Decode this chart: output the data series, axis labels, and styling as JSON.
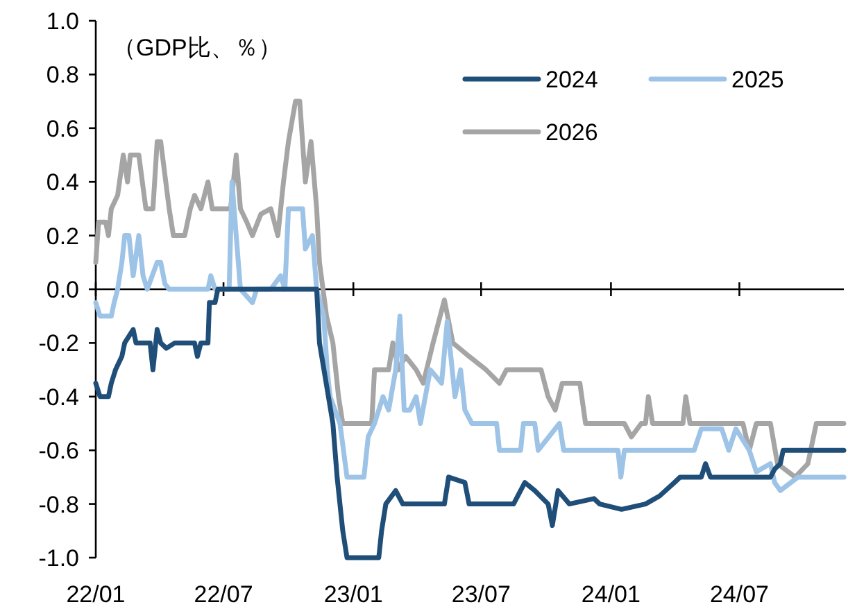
{
  "chart_data": {
    "type": "line",
    "ylabel": "（GDP比、％）",
    "legend": "top right",
    "xlim": [
      "2022-01-01",
      "2024-11-26"
    ],
    "ylim": [
      -1.0,
      1.0
    ],
    "xticks": [
      {
        "value": "2022-01-01",
        "label": "22/01"
      },
      {
        "value": "2022-07-01",
        "label": "22/07"
      },
      {
        "value": "2023-01-01",
        "label": "23/01"
      },
      {
        "value": "2023-07-01",
        "label": "23/07"
      },
      {
        "value": "2024-01-01",
        "label": "24/01"
      },
      {
        "value": "2024-07-01",
        "label": "24/07"
      }
    ],
    "yticks": [
      {
        "value": -1.0,
        "label": "-1.0"
      },
      {
        "value": -0.8,
        "label": "-0.8"
      },
      {
        "value": -0.6,
        "label": "-0.6"
      },
      {
        "value": -0.4,
        "label": "-0.4"
      },
      {
        "value": -0.2,
        "label": "-0.2"
      },
      {
        "value": 0,
        "label": "0.0"
      },
      {
        "value": 0.2,
        "label": "0.2"
      },
      {
        "value": 0.4,
        "label": "0.4"
      },
      {
        "value": 0.6,
        "label": "0.6"
      },
      {
        "value": 0.8,
        "label": "0.8"
      },
      {
        "value": 1.0,
        "label": "1.0"
      }
    ],
    "series": [
      {
        "name": "2024",
        "color": "#1f4e79",
        "x": [
          "2022-01-01",
          "2022-01-07",
          "2022-01-19",
          "2022-01-23",
          "2022-01-29",
          "2022-02-07",
          "2022-02-11",
          "2022-02-23",
          "2022-02-27",
          "2022-03-19",
          "2022-03-23",
          "2022-03-29",
          "2022-04-03",
          "2022-04-11",
          "2022-04-23",
          "2022-05-21",
          "2022-05-25",
          "2022-05-30",
          "2022-06-09",
          "2022-06-11",
          "2022-06-19",
          "2022-06-23",
          "2022-11-10",
          "2022-11-14",
          "2022-12-03",
          "2022-12-09",
          "2022-12-17",
          "2022-12-23",
          "2023-02-06",
          "2023-02-10",
          "2023-02-16",
          "2023-03-02",
          "2023-03-12",
          "2023-05-10",
          "2023-05-16",
          "2023-06-08",
          "2023-06-14",
          "2023-08-16",
          "2023-09-01",
          "2023-09-15",
          "2023-10-04",
          "2023-10-10",
          "2023-10-18",
          "2023-11-03",
          "2023-12-08",
          "2023-12-16",
          "2024-01-16",
          "2024-02-19",
          "2024-03-10",
          "2024-03-31",
          "2024-04-08",
          "2024-05-08",
          "2024-05-14",
          "2024-05-21",
          "2024-07-15",
          "2024-08-14",
          "2024-08-20",
          "2024-08-28",
          "2024-09-01",
          "2024-11-26"
        ],
        "values": [
          -0.35,
          -0.4,
          -0.4,
          -0.35,
          -0.3,
          -0.25,
          -0.2,
          -0.15,
          -0.2,
          -0.2,
          -0.3,
          -0.15,
          -0.2,
          -0.22,
          -0.2,
          -0.2,
          -0.25,
          -0.2,
          -0.2,
          -0.05,
          -0.05,
          0,
          0,
          -0.2,
          -0.5,
          -0.7,
          -0.9,
          -1.0,
          -1.0,
          -0.9,
          -0.8,
          -0.75,
          -0.8,
          -0.8,
          -0.7,
          -0.72,
          -0.8,
          -0.8,
          -0.72,
          -0.75,
          -0.8,
          -0.88,
          -0.75,
          -0.8,
          -0.78,
          -0.8,
          -0.82,
          -0.8,
          -0.77,
          -0.72,
          -0.7,
          -0.7,
          -0.65,
          -0.7,
          -0.7,
          -0.7,
          -0.67,
          -0.65,
          -0.6,
          -0.6
        ]
      },
      {
        "name": "2025",
        "color": "#9dc3e6",
        "x": [
          "2022-01-01",
          "2022-01-07",
          "2022-01-23",
          "2022-01-27",
          "2022-02-01",
          "2022-02-07",
          "2022-02-11",
          "2022-02-17",
          "2022-02-23",
          "2022-03-03",
          "2022-03-09",
          "2022-03-15",
          "2022-03-29",
          "2022-04-03",
          "2022-04-09",
          "2022-04-15",
          "2022-06-09",
          "2022-06-13",
          "2022-06-19",
          "2022-07-09",
          "2022-07-13",
          "2022-07-19",
          "2022-07-25",
          "2022-08-11",
          "2022-08-17",
          "2022-09-06",
          "2022-09-20",
          "2022-09-26",
          "2022-10-01",
          "2022-10-21",
          "2022-10-25",
          "2022-11-04",
          "2022-11-10",
          "2022-11-20",
          "2022-11-25",
          "2022-11-29",
          "2022-12-13",
          "2022-12-23",
          "2023-01-16",
          "2023-01-22",
          "2023-01-31",
          "2023-02-12",
          "2023-02-20",
          "2023-03-02",
          "2023-03-08",
          "2023-03-14",
          "2023-03-22",
          "2023-03-31",
          "2023-04-06",
          "2023-04-20",
          "2023-05-06",
          "2023-05-14",
          "2023-05-25",
          "2023-06-02",
          "2023-06-08",
          "2023-06-18",
          "2023-07-23",
          "2023-07-27",
          "2023-08-26",
          "2023-08-30",
          "2023-09-15",
          "2023-09-20",
          "2023-10-20",
          "2023-10-26",
          "2024-01-11",
          "2024-01-15",
          "2024-01-20",
          "2024-04-28",
          "2024-05-08",
          "2024-06-06",
          "2024-06-16",
          "2024-06-26",
          "2024-07-15",
          "2024-07-25",
          "2024-08-14",
          "2024-08-20",
          "2024-08-28",
          "2024-09-12",
          "2024-09-22",
          "2024-11-26"
        ],
        "values": [
          -0.05,
          -0.1,
          -0.1,
          -0.05,
          0,
          0.1,
          0.2,
          0.2,
          0.05,
          0.2,
          0.05,
          0,
          0.1,
          0.1,
          0.02,
          0,
          0,
          0.05,
          0,
          0,
          0.4,
          0.2,
          0,
          -0.05,
          0,
          0,
          0.05,
          0,
          0.3,
          0.3,
          0.15,
          0.2,
          0,
          -0.1,
          -0.3,
          -0.4,
          -0.5,
          -0.7,
          -0.7,
          -0.55,
          -0.5,
          -0.4,
          -0.45,
          -0.3,
          -0.1,
          -0.45,
          -0.45,
          -0.4,
          -0.5,
          -0.3,
          -0.35,
          -0.12,
          -0.4,
          -0.3,
          -0.45,
          -0.5,
          -0.5,
          -0.6,
          -0.6,
          -0.5,
          -0.5,
          -0.6,
          -0.5,
          -0.6,
          -0.6,
          -0.7,
          -0.6,
          -0.6,
          -0.52,
          -0.52,
          -0.6,
          -0.52,
          -0.6,
          -0.68,
          -0.65,
          -0.72,
          -0.75,
          -0.72,
          -0.7,
          -0.7
        ]
      },
      {
        "name": "2026",
        "color": "#a5a5a5",
        "x": [
          "2022-01-01",
          "2022-01-05",
          "2022-01-15",
          "2022-01-19",
          "2022-01-23",
          "2022-02-01",
          "2022-02-09",
          "2022-02-15",
          "2022-02-19",
          "2022-03-03",
          "2022-03-13",
          "2022-03-23",
          "2022-03-29",
          "2022-04-03",
          "2022-04-15",
          "2022-04-21",
          "2022-05-07",
          "2022-05-15",
          "2022-05-21",
          "2022-05-30",
          "2022-06-09",
          "2022-06-15",
          "2022-07-11",
          "2022-07-19",
          "2022-07-25",
          "2022-08-03",
          "2022-08-11",
          "2022-08-23",
          "2022-09-06",
          "2022-09-16",
          "2022-09-24",
          "2022-10-01",
          "2022-10-11",
          "2022-10-17",
          "2022-10-25",
          "2022-11-02",
          "2022-11-10",
          "2022-11-14",
          "2022-11-24",
          "2022-12-03",
          "2022-12-11",
          "2022-12-17",
          "2023-01-27",
          "2023-01-31",
          "2023-02-20",
          "2023-02-26",
          "2023-03-06",
          "2023-03-16",
          "2023-03-31",
          "2023-04-10",
          "2023-04-24",
          "2023-05-02",
          "2023-05-10",
          "2023-05-22",
          "2023-06-14",
          "2023-07-08",
          "2023-07-27",
          "2023-08-06",
          "2023-09-24",
          "2023-10-04",
          "2023-10-14",
          "2023-10-24",
          "2023-11-18",
          "2023-11-26",
          "2024-01-20",
          "2024-01-30",
          "2024-02-13",
          "2024-02-19",
          "2024-02-23",
          "2024-02-29",
          "2024-04-12",
          "2024-04-16",
          "2024-04-22",
          "2024-07-06",
          "2024-07-15",
          "2024-07-25",
          "2024-08-14",
          "2024-08-24",
          "2024-09-18",
          "2024-10-06",
          "2024-10-18",
          "2024-11-26"
        ],
        "values": [
          0.1,
          0.25,
          0.25,
          0.2,
          0.3,
          0.35,
          0.5,
          0.4,
          0.5,
          0.5,
          0.3,
          0.3,
          0.55,
          0.55,
          0.3,
          0.2,
          0.2,
          0.3,
          0.35,
          0.3,
          0.4,
          0.3,
          0.3,
          0.5,
          0.3,
          0.25,
          0.2,
          0.28,
          0.3,
          0.2,
          0.4,
          0.55,
          0.7,
          0.7,
          0.4,
          0.55,
          0.3,
          0.1,
          -0.1,
          -0.2,
          -0.4,
          -0.5,
          -0.5,
          -0.3,
          -0.3,
          -0.2,
          -0.3,
          -0.25,
          -0.3,
          -0.35,
          -0.2,
          -0.12,
          -0.04,
          -0.2,
          -0.25,
          -0.3,
          -0.35,
          -0.3,
          -0.3,
          -0.4,
          -0.45,
          -0.35,
          -0.35,
          -0.5,
          -0.5,
          -0.55,
          -0.5,
          -0.5,
          -0.4,
          -0.5,
          -0.5,
          -0.4,
          -0.5,
          -0.5,
          -0.6,
          -0.5,
          -0.5,
          -0.65,
          -0.7,
          -0.65,
          -0.5,
          -0.5
        ]
      }
    ]
  }
}
